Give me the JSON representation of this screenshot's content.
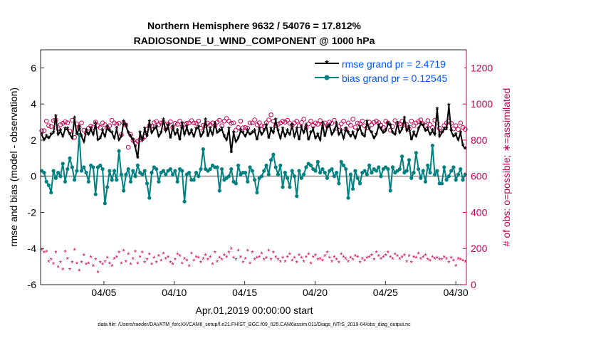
{
  "chart_data": {
    "type": "line",
    "title_line1": "Northern Hemisphere 9632 / 54076 = 17.812%",
    "title_line2": "RADIOSONDE_U_WIND_COMPONENT @ 1000 hPa",
    "xlabel": "Apr.01,2019 00:00:00 start",
    "ylabel_left": "rmse and bias (model - observation)",
    "ylabel_right": "# of obs: o=possible; ∗=assimilated",
    "footer": "data file: /Users/raeder/DAI/ATM_forcXX/CAM6_setup/f.e21.FHIST_BGC.f09_025.CAM6assim.011/Diags_NTrS_2019-04/obs_diag_output.nc",
    "x_range": [
      0.5,
      30.75
    ],
    "ylim_left": [
      -6,
      7
    ],
    "ylim_right": [
      0,
      1300
    ],
    "x_ticks": [
      {
        "value": 5,
        "label": "04/05"
      },
      {
        "value": 10,
        "label": "04/10"
      },
      {
        "value": 15,
        "label": "04/15"
      },
      {
        "value": 20,
        "label": "04/20"
      },
      {
        "value": 25,
        "label": "04/25"
      },
      {
        "value": 30,
        "label": "04/30"
      }
    ],
    "y_ticks_left": [
      -6,
      -4,
      -2,
      0,
      2,
      4,
      6
    ],
    "y_ticks_right": [
      0,
      200,
      400,
      600,
      800,
      1000,
      1200
    ],
    "legend": [
      {
        "name": "rmse",
        "label": "rmse grand pr = 2.4719"
      },
      {
        "name": "bias",
        "label": "bias grand pr = 0.12545"
      }
    ],
    "colors": {
      "rmse": "#000000",
      "bias": "#008080",
      "obs": "#cc0055",
      "legend_text": "#0055ff",
      "zero_line": "#aaaaaa"
    },
    "rmse": [
      2.3,
      2.0,
      2.2,
      2.1,
      2.3,
      2.4,
      3.3,
      2.3,
      2.5,
      2.2,
      2.6,
      2.6,
      2.3,
      2.1,
      3.2,
      2.3,
      2.7,
      2.2,
      1.9,
      2.5,
      2.3,
      2.6,
      2.3,
      2.9,
      2.0,
      2.1,
      2.5,
      2.2,
      2.7,
      2.5,
      2.4,
      2.1,
      2.6,
      2.0,
      2.2,
      3.0,
      2.8,
      2.4,
      2.2,
      2.0,
      1.6,
      1.0,
      2.4,
      2.0,
      2.6,
      2.2,
      3.0,
      2.4,
      2.6,
      2.7,
      2.2,
      2.4,
      3.1,
      2.5,
      2.8,
      2.1,
      2.7,
      2.3,
      2.5,
      2.0,
      2.9,
      2.3,
      2.7,
      2.3,
      2.5,
      2.2,
      2.6,
      2.7,
      2.2,
      2.4,
      3.1,
      2.2,
      2.6,
      2.3,
      2.9,
      2.4,
      2.5,
      2.6,
      2.2,
      2.0,
      2.6,
      1.3,
      2.4,
      1.9,
      2.1,
      2.5,
      2.4,
      2.2,
      2.5,
      2.3,
      2.4,
      2.5,
      2.0,
      2.6,
      2.3,
      2.5,
      2.8,
      2.1,
      2.6,
      2.4,
      3.1,
      2.5,
      2.1,
      2.6,
      2.2,
      2.5,
      2.3,
      2.8,
      2.2,
      2.6,
      2.0,
      2.7,
      2.4,
      2.8,
      2.0,
      2.4,
      2.6,
      2.1,
      2.3,
      2.0,
      2.9,
      2.2,
      2.7,
      2.8,
      2.3,
      2.5,
      2.9,
      2.3,
      2.5,
      2.1,
      2.6,
      2.4,
      2.2,
      2.4,
      2.1,
      2.5,
      2.7,
      2.3,
      2.2,
      3.0,
      2.6,
      2.4,
      2.1,
      2.3,
      2.8,
      2.6,
      2.4,
      2.5,
      2.9,
      2.8,
      2.4,
      2.3,
      2.9,
      2.4,
      2.6,
      3.2,
      2.5,
      2.7,
      2.0,
      2.4,
      2.2,
      2.6,
      2.9,
      2.8,
      2.5,
      2.6,
      2.3,
      2.5,
      2.3,
      3.7,
      2.2,
      2.4,
      2.6,
      2.6,
      3.9,
      2.5,
      2.2,
      2.3,
      2.0,
      2.4,
      1.7,
      1.5
    ],
    "bias": [
      0.3,
      0.2,
      -0.3,
      -0.5,
      -0.9,
      0.3,
      -0.1,
      0.2,
      0.0,
      0.7,
      -0.3,
      0.4,
      1.0,
      0.5,
      -0.2,
      0.3,
      2.3,
      0.3,
      0.5,
      0.2,
      -0.3,
      0.6,
      0.5,
      -1.0,
      0.5,
      0.6,
      0.4,
      -1.5,
      -0.6,
      0.3,
      -0.2,
      0.3,
      -0.2,
      1.4,
      0.1,
      -0.8,
      0.1,
      0.4,
      -0.3,
      0.3,
      0.0,
      0.6,
      0.2,
      0.1,
      0.3,
      -0.4,
      -1.2,
      0.2,
      0.5,
      0.4,
      -0.3,
      0.2,
      0.3,
      0.1,
      0.3,
      0.4,
      0.1,
      0.3,
      -0.3,
      0.4,
      0.3,
      -1.4,
      0.1,
      0.2,
      -0.2,
      -0.2,
      0.2,
      0.0,
      0.4,
      1.5,
      0.4,
      0.3,
      0.4,
      0.6,
      0.5,
      0.5,
      -0.8,
      0.4,
      -0.2,
      -0.1,
      0.0,
      0.4,
      -0.3,
      -0.4,
      0.6,
      0.1,
      0.2,
      0.2,
      -0.3,
      0.5,
      0.3,
      -0.2,
      -0.9,
      -0.1,
      0.0,
      0.3,
      0.6,
      0.1,
      0.9,
      1.2,
      0.5,
      0.1,
      0.6,
      -0.6,
      0.2,
      -0.1,
      -0.6,
      0.3,
      0.0,
      -1.1,
      0.3,
      -0.1,
      0.1,
      0.5,
      0.7,
      0.6,
      0.4,
      0.3,
      0.8,
      0.2,
      0.4,
      0.2,
      -0.1,
      0.3,
      0.4,
      0.0,
      0.2,
      -0.4,
      0.8,
      0.6,
      0.4,
      -1.2,
      0.1,
      -0.7,
      0.3,
      -0.1,
      -0.4,
      0.2,
      0.3,
      0.1,
      0.6,
      0.2,
      0.4,
      0.3,
      0.5,
      0.0,
      0.4,
      0.5,
      0.4,
      -0.8,
      0.5,
      0.2,
      0.3,
      0.4,
      1.1,
      0.2,
      0.3,
      0.9,
      -0.1,
      0.2,
      1.3,
      0.4,
      -0.1,
      0.3,
      -0.3,
      0.6,
      0.2,
      1.7,
      0.1,
      0.3,
      -0.4,
      -0.4,
      0.5,
      -0.2,
      0.0,
      0.3,
      0.5,
      -0.2,
      0.1,
      0.4,
      -0.2,
      0.1
    ],
    "obs_possible": [
      852,
      852,
      905,
      880,
      875,
      908,
      912,
      862,
      885,
      893,
      902,
      896,
      850,
      910,
      815,
      890,
      870,
      895,
      855,
      840,
      866,
      878,
      872,
      900,
      880,
      870,
      895,
      885,
      868,
      880,
      910,
      895,
      887,
      893,
      830,
      895,
      883,
      760,
      830,
      798,
      785,
      795,
      803,
      808,
      820,
      860,
      880,
      878,
      896,
      903,
      885,
      895,
      898,
      862,
      890,
      902,
      870,
      893,
      888,
      905,
      875,
      888,
      893,
      895,
      908,
      895,
      893,
      905,
      866,
      882,
      880,
      893,
      885,
      895,
      880,
      900,
      910,
      880,
      905,
      920,
      905,
      893,
      895,
      855,
      870,
      905,
      868,
      870,
      866,
      895,
      895,
      912,
      885,
      896,
      880,
      875,
      896,
      912,
      940,
      905,
      880,
      888,
      895,
      905,
      900,
      910,
      893,
      882,
      895,
      905,
      880,
      898,
      916,
      870,
      890,
      905,
      882,
      895,
      888,
      908,
      890,
      895,
      878,
      900,
      893,
      910,
      866,
      875,
      890,
      905,
      860,
      895,
      882,
      916,
      872,
      895,
      890,
      905,
      880,
      868,
      900,
      885,
      898,
      905,
      896,
      882,
      870,
      905,
      895,
      855,
      875,
      908,
      893,
      890,
      905,
      885,
      885,
      860,
      905,
      880,
      895,
      903,
      912,
      890,
      882,
      908,
      885,
      870,
      910,
      895,
      866,
      850,
      880,
      895,
      905,
      893,
      862,
      880,
      860,
      895,
      870,
      860
    ],
    "obs_assimilated": [
      190,
      175,
      180,
      125,
      135,
      112,
      175,
      95,
      120,
      80,
      180,
      140,
      80,
      120,
      190,
      115,
      75,
      120,
      160,
      110,
      115,
      150,
      100,
      135,
      65,
      120,
      110,
      125,
      145,
      115,
      100,
      140,
      150,
      175,
      115,
      185,
      125,
      165,
      110,
      140,
      180,
      115,
      150,
      175,
      120,
      135,
      165,
      110,
      145,
      120,
      155,
      130,
      170,
      140,
      150,
      120,
      110,
      135,
      165,
      155,
      115,
      140,
      130,
      100,
      170,
      130,
      150,
      145,
      120,
      140,
      160,
      135,
      150,
      110,
      175,
      125,
      145,
      135,
      160,
      150,
      175,
      195,
      145,
      135,
      185,
      150,
      120,
      140,
      185,
      115,
      175,
      135,
      145,
      150,
      170,
      135,
      145,
      185,
      135,
      175,
      150,
      135,
      125,
      145,
      125,
      150,
      165,
      130,
      145,
      120,
      160,
      145,
      125,
      150,
      165,
      115,
      150,
      160,
      135,
      140,
      130,
      155,
      175,
      145,
      125,
      150,
      135,
      120,
      165,
      150,
      140,
      125,
      145,
      135,
      155,
      150,
      120,
      140,
      130,
      145,
      150,
      160,
      135,
      175,
      155,
      140,
      150,
      160,
      175,
      150,
      140,
      165,
      155,
      140,
      150,
      160,
      125,
      155,
      120,
      150,
      145,
      170,
      140,
      150,
      160,
      135,
      130,
      150,
      140,
      145,
      135,
      135,
      150,
      140,
      120,
      145,
      130,
      100,
      140,
      135,
      130,
      125
    ]
  }
}
